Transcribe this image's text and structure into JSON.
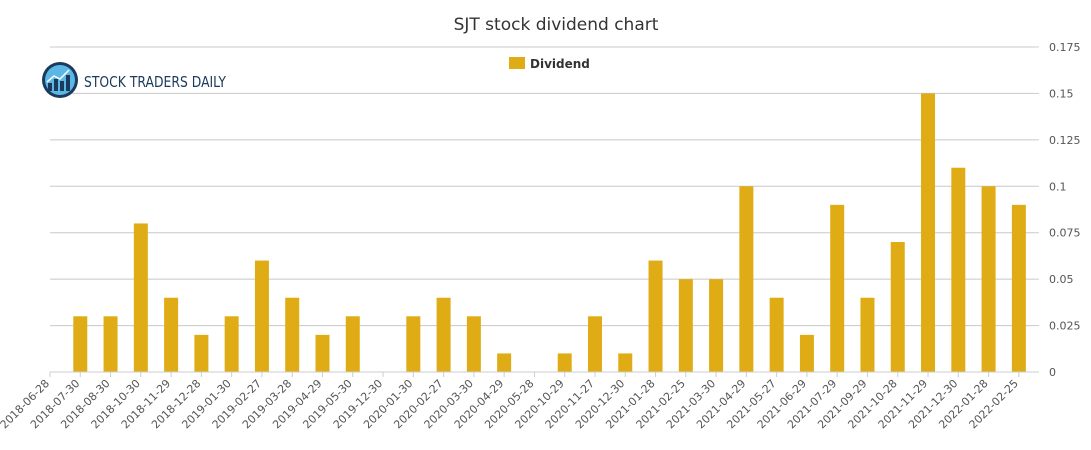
{
  "colors": {
    "bar": "#e0ac15",
    "grid": "#c8c8c8",
    "axis": "#cccccc",
    "logo_dark": "#1b3a5c",
    "logo_light": "#5bb7e5"
  },
  "logo": {
    "text": "STOCK TRADERS DAILY"
  },
  "chart_data": {
    "type": "bar",
    "title": "SJT stock dividend chart",
    "legend": {
      "label": "Dividend",
      "position": "top-center"
    },
    "xlabel": "",
    "ylabel": "",
    "ylim": [
      0,
      0.175
    ],
    "yticks": [
      0,
      0.025,
      0.05,
      0.075,
      0.1,
      0.125,
      0.15,
      0.175
    ],
    "ytick_labels": [
      "0",
      "0.025",
      "0.05",
      "0.075",
      "0.1",
      "0.125",
      "0.15",
      "0.175"
    ],
    "yaxis_side": "right",
    "grid": true,
    "categories": [
      "2018-06-28",
      "2018-07-30",
      "2018-08-30",
      "2018-10-30",
      "2018-11-29",
      "2018-12-28",
      "2019-01-30",
      "2019-02-27",
      "2019-03-28",
      "2019-04-29",
      "2019-05-30",
      "2019-12-30",
      "2020-01-30",
      "2020-02-27",
      "2020-03-30",
      "2020-04-29",
      "2020-05-28",
      "2020-10-29",
      "2020-11-27",
      "2020-12-30",
      "2021-01-28",
      "2021-02-25",
      "2021-03-30",
      "2021-04-29",
      "2021-05-27",
      "2021-06-29",
      "2021-07-29",
      "2021-09-29",
      "2021-10-28",
      "2021-11-29",
      "2021-12-30",
      "2022-01-28",
      "2022-02-25"
    ],
    "values": [
      0,
      0.03,
      0.03,
      0.08,
      0.04,
      0.02,
      0.03,
      0.06,
      0.04,
      0.02,
      0.03,
      0,
      0.03,
      0.04,
      0.03,
      0.01,
      0,
      0.01,
      0.03,
      0.01,
      0.06,
      0.05,
      0.05,
      0.1,
      0.04,
      0.02,
      0.09,
      0.04,
      0.07,
      0.15,
      0.11,
      0.1,
      0.09
    ]
  }
}
